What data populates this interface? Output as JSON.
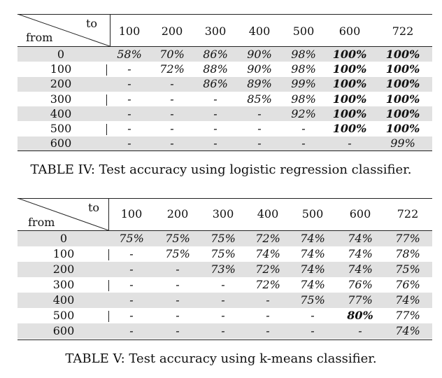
{
  "table_iv": {
    "corner_to": "to",
    "corner_from": "from",
    "columns": [
      "100",
      "200",
      "300",
      "400",
      "500",
      "600",
      "722"
    ],
    "rows": [
      {
        "from": "0",
        "cells": [
          "58%",
          "70%",
          "86%",
          "90%",
          "98%",
          "100%",
          "100%"
        ],
        "bold": [
          false,
          false,
          false,
          false,
          false,
          true,
          true
        ]
      },
      {
        "from": "100",
        "cells": [
          "-",
          "72%",
          "88%",
          "90%",
          "98%",
          "100%",
          "100%"
        ],
        "bold": [
          false,
          false,
          false,
          false,
          false,
          true,
          true
        ]
      },
      {
        "from": "200",
        "cells": [
          "-",
          "-",
          "86%",
          "89%",
          "99%",
          "100%",
          "100%"
        ],
        "bold": [
          false,
          false,
          false,
          false,
          false,
          true,
          true
        ]
      },
      {
        "from": "300",
        "cells": [
          "-",
          "-",
          "-",
          "85%",
          "98%",
          "100%",
          "100%"
        ],
        "bold": [
          false,
          false,
          false,
          false,
          false,
          true,
          true
        ]
      },
      {
        "from": "400",
        "cells": [
          "-",
          "-",
          "-",
          "-",
          "92%",
          "100%",
          "100%"
        ],
        "bold": [
          false,
          false,
          false,
          false,
          false,
          true,
          true
        ]
      },
      {
        "from": "500",
        "cells": [
          "-",
          "-",
          "-",
          "-",
          "-",
          "100%",
          "100%"
        ],
        "bold": [
          false,
          false,
          false,
          false,
          false,
          true,
          true
        ]
      },
      {
        "from": "600",
        "cells": [
          "-",
          "-",
          "-",
          "-",
          "-",
          "-",
          "99%"
        ],
        "bold": [
          false,
          false,
          false,
          false,
          false,
          false,
          false
        ]
      }
    ],
    "caption": "TABLE IV: Test accuracy using logistic regression classifier."
  },
  "table_v": {
    "corner_to": "to",
    "corner_from": "from",
    "columns": [
      "100",
      "200",
      "300",
      "400",
      "500",
      "600",
      "722"
    ],
    "rows": [
      {
        "from": "0",
        "cells": [
          "75%",
          "75%",
          "75%",
          "72%",
          "74%",
          "74%",
          "77%"
        ],
        "bold": [
          false,
          false,
          false,
          false,
          false,
          false,
          false
        ]
      },
      {
        "from": "100",
        "cells": [
          "-",
          "75%",
          "75%",
          "74%",
          "74%",
          "74%",
          "78%"
        ],
        "bold": [
          false,
          false,
          false,
          false,
          false,
          false,
          false
        ]
      },
      {
        "from": "200",
        "cells": [
          "-",
          "-",
          "73%",
          "72%",
          "74%",
          "74%",
          "75%"
        ],
        "bold": [
          false,
          false,
          false,
          false,
          false,
          false,
          false
        ]
      },
      {
        "from": "300",
        "cells": [
          "-",
          "-",
          "-",
          "72%",
          "74%",
          "76%",
          "76%"
        ],
        "bold": [
          false,
          false,
          false,
          false,
          false,
          false,
          false
        ]
      },
      {
        "from": "400",
        "cells": [
          "-",
          "-",
          "-",
          "-",
          "75%",
          "77%",
          "74%"
        ],
        "bold": [
          false,
          false,
          false,
          false,
          false,
          false,
          false
        ]
      },
      {
        "from": "500",
        "cells": [
          "-",
          "-",
          "-",
          "-",
          "-",
          "80%",
          "77%"
        ],
        "bold": [
          false,
          false,
          false,
          false,
          false,
          true,
          false
        ]
      },
      {
        "from": "600",
        "cells": [
          "-",
          "-",
          "-",
          "-",
          "-",
          "-",
          "74%"
        ],
        "bold": [
          false,
          false,
          false,
          false,
          false,
          false,
          false
        ]
      }
    ],
    "caption": "TABLE V: Test accuracy using k-means classifier."
  },
  "colors": {
    "band": "#e1e1e1",
    "rule": "#222222"
  }
}
